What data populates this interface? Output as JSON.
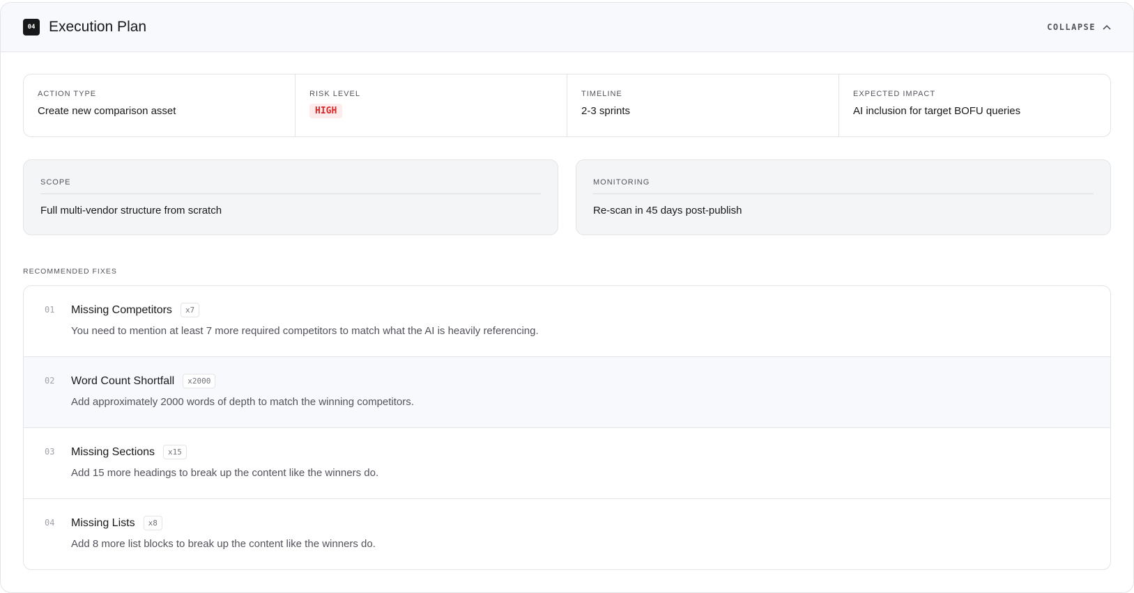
{
  "header": {
    "number": "04",
    "title": "Execution Plan",
    "collapse_label": "COLLAPSE"
  },
  "stats": [
    {
      "label": "ACTION TYPE",
      "value": "Create new comparison asset"
    },
    {
      "label": "RISK LEVEL",
      "value": "HIGH"
    },
    {
      "label": "TIMELINE",
      "value": "2-3 sprints"
    },
    {
      "label": "EXPECTED IMPACT",
      "value": "AI inclusion for target BOFU queries"
    }
  ],
  "risk_color": "#dc2626",
  "scope": {
    "label": "SCOPE",
    "value": "Full multi-vendor structure from scratch"
  },
  "monitoring": {
    "label": "MONITORING",
    "value": "Re-scan in 45 days post-publish"
  },
  "fixes_label": "RECOMMENDED FIXES",
  "fixes": [
    {
      "num": "01",
      "title": "Missing Competitors",
      "tag": "x7",
      "desc": "You need to mention at least 7 more required competitors to match what the AI is heavily referencing."
    },
    {
      "num": "02",
      "title": "Word Count Shortfall",
      "tag": "x2000",
      "desc": "Add approximately 2000 words of depth to match the winning competitors."
    },
    {
      "num": "03",
      "title": "Missing Sections",
      "tag": "x15",
      "desc": "Add 15 more headings to break up the content like the winners do."
    },
    {
      "num": "04",
      "title": "Missing Lists",
      "tag": "x8",
      "desc": "Add 8 more list blocks to break up the content like the winners do."
    }
  ]
}
